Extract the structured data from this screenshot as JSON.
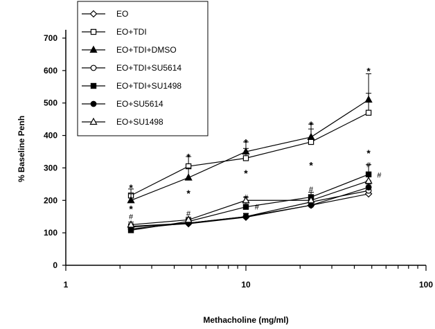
{
  "chart_data": {
    "type": "line",
    "xlabel": "Methacholine (mg/ml)",
    "ylabel": "% Baseline Penh",
    "xscale": "log",
    "xlim": [
      1,
      100
    ],
    "ylim": [
      0,
      700
    ],
    "x_tick_labels": [
      "1",
      "10",
      "100"
    ],
    "y_tick_labels": [
      "0",
      "100",
      "200",
      "300",
      "400",
      "500",
      "600",
      "700"
    ],
    "x": [
      2.3,
      4.8,
      10,
      23,
      48
    ],
    "legend_position": "top-left",
    "series": [
      {
        "name": "EO",
        "marker": "diamond-open",
        "values": [
          118,
          128,
          148,
          185,
          220
        ],
        "errors": [
          8,
          8,
          10,
          12,
          25
        ]
      },
      {
        "name": "EO+TDI",
        "marker": "square-open",
        "values": [
          215,
          305,
          330,
          380,
          470
        ],
        "errors": [
          20,
          30,
          30,
          40,
          60
        ]
      },
      {
        "name": "EO+TDI+DMSO",
        "marker": "triangle-filled",
        "values": [
          200,
          270,
          350,
          395,
          510
        ],
        "errors": [
          20,
          30,
          30,
          40,
          80
        ]
      },
      {
        "name": "EO+TDI+SU5614",
        "marker": "circle-open",
        "values": [
          112,
          130,
          150,
          195,
          230
        ],
        "errors": [
          8,
          8,
          10,
          12,
          20
        ]
      },
      {
        "name": "EO+TDI+SU1498",
        "marker": "square-filled",
        "values": [
          108,
          135,
          180,
          210,
          280
        ],
        "errors": [
          8,
          10,
          12,
          15,
          30
        ]
      },
      {
        "name": "EO+SU5614",
        "marker": "circle-filled",
        "values": [
          120,
          130,
          150,
          185,
          240
        ],
        "errors": [
          8,
          8,
          10,
          12,
          20
        ]
      },
      {
        "name": "EO+SU1498",
        "marker": "triangle-open",
        "values": [
          125,
          140,
          200,
          200,
          260
        ],
        "errors": [
          8,
          8,
          10,
          12,
          20
        ]
      }
    ],
    "annotations": [
      {
        "text": "*",
        "x": 2.3,
        "y": 245
      },
      {
        "text": "*",
        "x": 2.3,
        "y": 180
      },
      {
        "text": "#",
        "x": 2.3,
        "y": 150
      },
      {
        "text": "*",
        "x": 4.8,
        "y": 340
      },
      {
        "text": "*",
        "x": 4.8,
        "y": 228
      },
      {
        "text": "#",
        "x": 4.8,
        "y": 160
      },
      {
        "text": "*",
        "x": 10,
        "y": 385
      },
      {
        "text": "*",
        "x": 10,
        "y": 290
      },
      {
        "text": "#",
        "x": 10,
        "y": 210
      },
      {
        "text": "#",
        "x": 11.5,
        "y": 180
      },
      {
        "text": "*",
        "x": 23,
        "y": 440
      },
      {
        "text": "*",
        "x": 23,
        "y": 315
      },
      {
        "text": "#",
        "x": 23,
        "y": 235
      },
      {
        "text": "*",
        "x": 48,
        "y": 605
      },
      {
        "text": "*",
        "x": 48,
        "y": 352
      },
      {
        "text": "#",
        "x": 48,
        "y": 310
      },
      {
        "text": "#",
        "x": 55,
        "y": 278
      }
    ]
  }
}
